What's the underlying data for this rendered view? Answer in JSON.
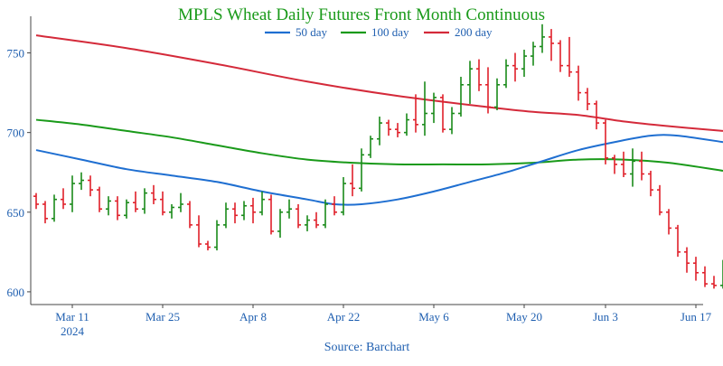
{
  "chart_data": {
    "type": "ohlc",
    "title": "MPLS Wheat Daily Futures Front Month Continuous",
    "source": "Source: Barchart",
    "ylim": [
      592,
      773
    ],
    "xlim": [
      0,
      101
    ],
    "yticks": [
      600,
      650,
      700,
      750
    ],
    "xticks": [
      {
        "i": 4,
        "label": "Mar 11",
        "sub": "2024"
      },
      {
        "i": 14,
        "label": "Mar 25",
        "sub": ""
      },
      {
        "i": 24,
        "label": "Apr 8",
        "sub": ""
      },
      {
        "i": 34,
        "label": "Apr 22",
        "sub": ""
      },
      {
        "i": 44,
        "label": "May 6",
        "sub": ""
      },
      {
        "i": 54,
        "label": "May 20",
        "sub": ""
      },
      {
        "i": 63,
        "label": "Jun 3",
        "sub": ""
      },
      {
        "i": 73,
        "label": "Jun 17",
        "sub": ""
      }
    ],
    "legend": [
      {
        "name": "50 day",
        "color": "#1f6fd1"
      },
      {
        "name": "100 day",
        "color": "#1a9a1a"
      },
      {
        "name": "200 day",
        "color": "#d42a3a"
      }
    ],
    "colors": {
      "up": "#1a8a1a",
      "down": "#e0202a",
      "title": "#1a9a1a",
      "axis": "#333333",
      "ticklabel": "#1f5fb0"
    },
    "ohlc": [
      [
        660,
        662,
        652,
        655
      ],
      [
        655,
        657,
        643,
        646
      ],
      [
        646,
        661,
        644,
        658
      ],
      [
        658,
        665,
        652,
        655
      ],
      [
        655,
        673,
        650,
        668
      ],
      [
        668,
        675,
        664,
        670
      ],
      [
        670,
        673,
        660,
        664
      ],
      [
        664,
        666,
        650,
        652
      ],
      [
        652,
        660,
        648,
        657
      ],
      [
        657,
        660,
        645,
        648
      ],
      [
        648,
        658,
        646,
        656
      ],
      [
        656,
        663,
        650,
        652
      ],
      [
        652,
        665,
        649,
        662
      ],
      [
        662,
        667,
        655,
        658
      ],
      [
        658,
        663,
        648,
        650
      ],
      [
        650,
        655,
        646,
        653
      ],
      [
        653,
        662,
        650,
        655
      ],
      [
        655,
        657,
        640,
        642
      ],
      [
        642,
        648,
        628,
        630
      ],
      [
        630,
        632,
        626,
        628
      ],
      [
        628,
        645,
        626,
        642
      ],
      [
        642,
        656,
        640,
        652
      ],
      [
        652,
        656,
        643,
        648
      ],
      [
        648,
        657,
        645,
        654
      ],
      [
        654,
        659,
        643,
        650
      ],
      [
        650,
        663,
        648,
        658
      ],
      [
        658,
        661,
        636,
        638
      ],
      [
        638,
        652,
        634,
        650
      ],
      [
        650,
        658,
        646,
        652
      ],
      [
        652,
        655,
        640,
        642
      ],
      [
        642,
        648,
        638,
        645
      ],
      [
        645,
        650,
        640,
        642
      ],
      [
        642,
        658,
        640,
        655
      ],
      [
        655,
        660,
        648,
        650
      ],
      [
        650,
        672,
        648,
        668
      ],
      [
        668,
        680,
        660,
        665
      ],
      [
        665,
        690,
        663,
        686
      ],
      [
        686,
        698,
        684,
        696
      ],
      [
        696,
        710,
        692,
        706
      ],
      [
        706,
        708,
        698,
        702
      ],
      [
        702,
        706,
        697,
        700
      ],
      [
        700,
        712,
        698,
        708
      ],
      [
        708,
        724,
        700,
        705
      ],
      [
        705,
        732,
        698,
        712
      ],
      [
        712,
        725,
        706,
        722
      ],
      [
        722,
        724,
        700,
        702
      ],
      [
        702,
        716,
        699,
        712
      ],
      [
        712,
        735,
        710,
        730
      ],
      [
        730,
        745,
        718,
        740
      ],
      [
        740,
        746,
        726,
        730
      ],
      [
        730,
        741,
        712,
        716
      ],
      [
        716,
        734,
        714,
        730
      ],
      [
        730,
        746,
        728,
        742
      ],
      [
        742,
        750,
        732,
        740
      ],
      [
        740,
        752,
        735,
        748
      ],
      [
        748,
        757,
        742,
        754
      ],
      [
        754,
        768,
        750,
        760
      ],
      [
        760,
        765,
        745,
        756
      ],
      [
        756,
        758,
        738,
        742
      ],
      [
        742,
        760,
        735,
        738
      ],
      [
        738,
        742,
        720,
        725
      ],
      [
        725,
        728,
        714,
        718
      ],
      [
        718,
        720,
        702,
        706
      ],
      [
        706,
        708,
        680,
        684
      ],
      [
        684,
        686,
        674,
        680
      ],
      [
        680,
        688,
        672,
        674
      ],
      [
        674,
        690,
        666,
        682
      ],
      [
        682,
        688,
        670,
        674
      ],
      [
        674,
        676,
        660,
        664
      ],
      [
        664,
        667,
        648,
        650
      ],
      [
        650,
        652,
        636,
        640
      ],
      [
        640,
        642,
        622,
        625
      ],
      [
        625,
        628,
        612,
        618
      ],
      [
        618,
        622,
        607,
        612
      ],
      [
        612,
        616,
        603,
        605
      ],
      [
        605,
        610,
        602,
        604
      ],
      [
        604,
        620,
        602,
        616
      ]
    ],
    "sma50": [
      [
        0,
        689
      ],
      [
        5,
        683
      ],
      [
        10,
        677
      ],
      [
        15,
        673
      ],
      [
        20,
        669
      ],
      [
        25,
        663
      ],
      [
        30,
        658
      ],
      [
        33,
        655
      ],
      [
        36,
        655
      ],
      [
        40,
        658
      ],
      [
        44,
        663
      ],
      [
        48,
        669
      ],
      [
        52,
        675
      ],
      [
        56,
        682
      ],
      [
        60,
        689
      ],
      [
        64,
        694
      ],
      [
        68,
        698
      ],
      [
        71,
        698
      ],
      [
        76,
        694
      ]
    ],
    "sma100": [
      [
        0,
        708
      ],
      [
        5,
        705
      ],
      [
        10,
        701
      ],
      [
        15,
        697
      ],
      [
        20,
        692
      ],
      [
        25,
        687
      ],
      [
        30,
        683
      ],
      [
        35,
        681
      ],
      [
        40,
        680
      ],
      [
        45,
        680
      ],
      [
        50,
        680
      ],
      [
        55,
        681
      ],
      [
        60,
        683
      ],
      [
        65,
        683
      ],
      [
        70,
        681
      ],
      [
        76,
        676
      ]
    ],
    "sma200": [
      [
        0,
        761
      ],
      [
        10,
        753
      ],
      [
        20,
        743
      ],
      [
        30,
        732
      ],
      [
        40,
        723
      ],
      [
        50,
        716
      ],
      [
        55,
        713
      ],
      [
        60,
        711
      ],
      [
        65,
        707
      ],
      [
        70,
        704
      ],
      [
        76,
        701
      ]
    ]
  }
}
